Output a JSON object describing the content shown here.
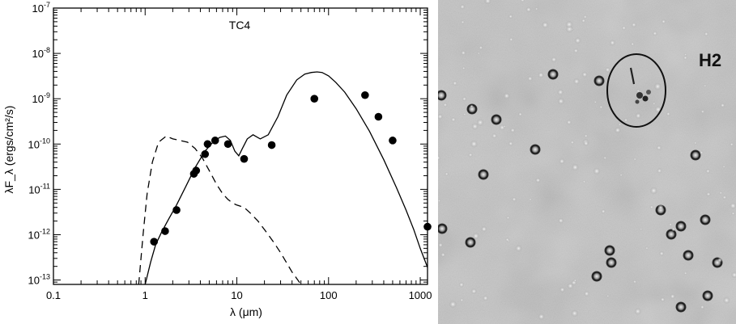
{
  "chart_data": {
    "type": "scatter",
    "title": "TC4",
    "xlabel": "λ (μm)",
    "ylabel": "λF_λ (ergs/cm²/s)",
    "x_scale": "log",
    "y_scale": "log",
    "xlim": [
      0.1,
      1200
    ],
    "ylim": [
      8e-14,
      1e-07
    ],
    "x_ticks": [
      "0.1",
      "1",
      "10",
      "100",
      "1000"
    ],
    "y_ticks": [
      {
        "base": "10",
        "exp": "-13",
        "value": 1e-13
      },
      {
        "base": "10",
        "exp": "-12",
        "value": 1e-12
      },
      {
        "base": "10",
        "exp": "-11",
        "value": 1e-11
      },
      {
        "base": "10",
        "exp": "-10",
        "value": 1e-10
      },
      {
        "base": "10",
        "exp": "-9",
        "value": 1e-09
      },
      {
        "base": "10",
        "exp": "-8",
        "value": 1e-08
      },
      {
        "base": "10",
        "exp": "-7",
        "value": 1e-07
      }
    ],
    "series": [
      {
        "kind": "points",
        "marker": "filled-circle",
        "x": [
          1.25,
          1.65,
          2.2,
          3.4,
          3.6,
          4.5,
          4.8,
          5.8,
          8.0,
          12,
          24,
          70,
          250,
          350,
          500,
          1200
        ],
        "y": [
          7e-13,
          1.2e-12,
          3.5e-12,
          2.2e-11,
          2.6e-11,
          6e-11,
          1e-10,
          1.2e-10,
          1e-10,
          4.7e-11,
          9.5e-11,
          1e-09,
          1.2e-09,
          4e-10,
          1.2e-10,
          1.5e-12
        ]
      },
      {
        "kind": "line",
        "style": "solid",
        "x": [
          1.0,
          1.15,
          1.3,
          1.5,
          1.8,
          2.2,
          2.8,
          3.5,
          4.5,
          5.5,
          6.5,
          7.5,
          8.5,
          9.5,
          10.5,
          11.5,
          13,
          15,
          18,
          22,
          28,
          35,
          45,
          55,
          65,
          75,
          85,
          100,
          120,
          150,
          200,
          280,
          400,
          550,
          700,
          850,
          1000,
          1200
        ],
        "y": [
          8e-14,
          2.5e-13,
          6e-13,
          1.1e-12,
          2.2e-12,
          4.5e-12,
          1.2e-11,
          3e-11,
          7e-11,
          1.1e-10,
          1.4e-10,
          1.5e-10,
          1.2e-10,
          7e-11,
          5.5e-11,
          8e-11,
          1.3e-10,
          1.6e-10,
          1.3e-10,
          1.6e-10,
          4e-10,
          1.2e-09,
          2.6e-09,
          3.5e-09,
          3.8e-09,
          3.9e-09,
          3.8e-09,
          3.2e-09,
          2.3e-09,
          1.4e-09,
          6e-10,
          1.9e-10,
          4.5e-11,
          1.1e-11,
          3.5e-12,
          1.3e-12,
          5e-13,
          1.9e-13
        ]
      },
      {
        "kind": "line",
        "style": "dashed",
        "x": [
          0.85,
          0.95,
          1.05,
          1.2,
          1.4,
          1.7,
          2.0,
          2.4,
          2.9,
          3.5,
          4.2,
          5.0,
          6.0,
          7.0,
          8.0,
          9.0,
          10.0,
          12,
          14,
          17,
          20,
          25,
          30,
          40,
          50
        ],
        "y": [
          8e-14,
          1e-12,
          8e-12,
          4e-11,
          1.1e-10,
          1.5e-10,
          1.3e-10,
          1.2e-10,
          1.1e-10,
          8e-11,
          5e-11,
          2.6e-11,
          1.3e-11,
          8e-12,
          6e-12,
          5e-12,
          4.5e-12,
          4e-12,
          3e-12,
          2e-12,
          1.3e-12,
          7e-13,
          4e-13,
          1.5e-13,
          8e-14
        ]
      }
    ]
  },
  "image_panel": {
    "label": "H2",
    "description_type": "greyscale astronomical image",
    "accent_colors": {
      "background": "#c4c4c4",
      "ellipse": "#111111",
      "label": "#111111"
    }
  }
}
